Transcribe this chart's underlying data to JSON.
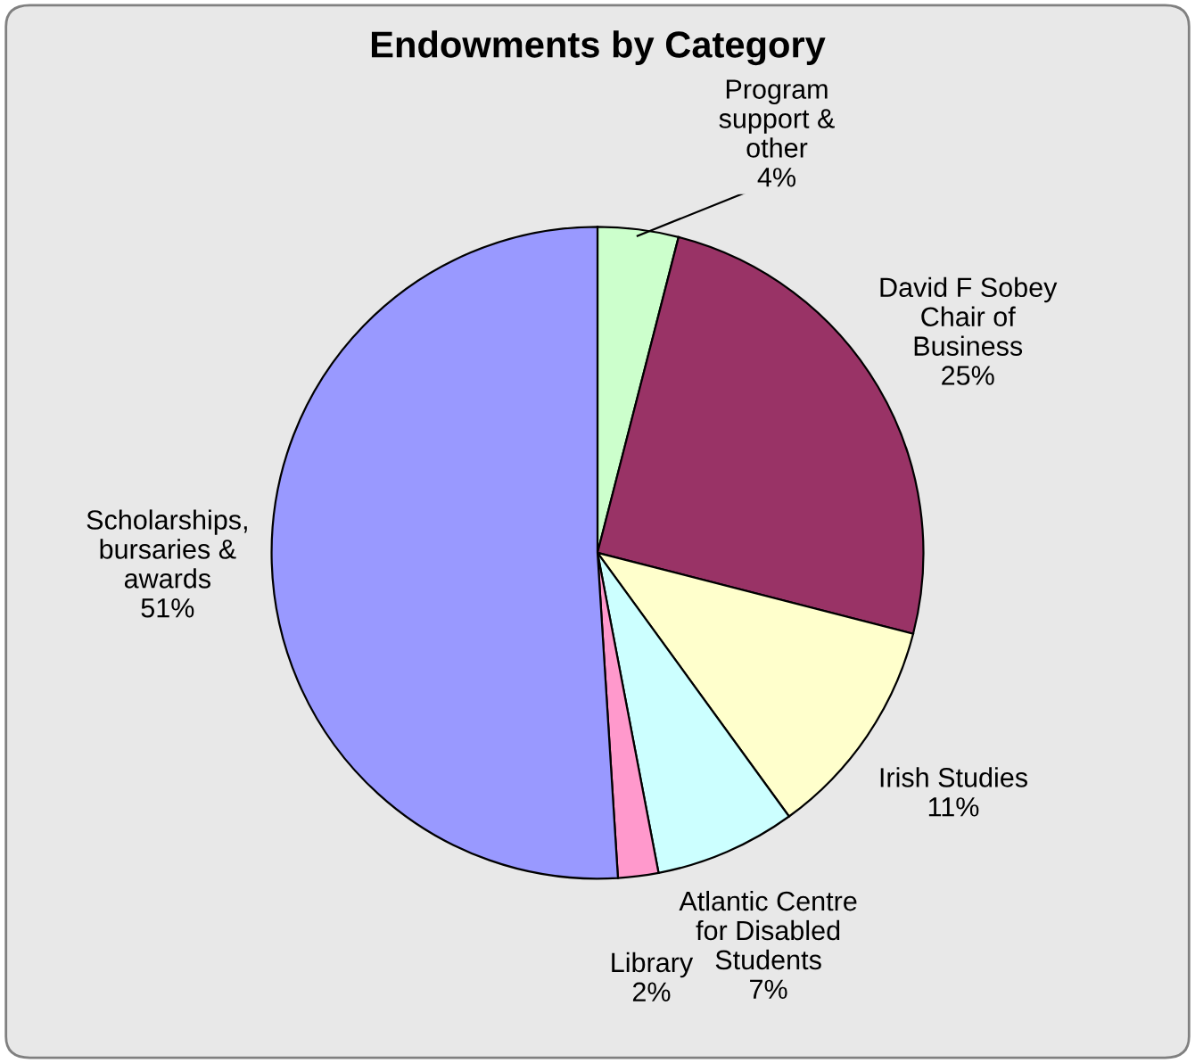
{
  "chart_data": {
    "type": "pie",
    "title": "Endowments by Category",
    "categories": [
      "Program\nsupport &\nother",
      "David F Sobey\nChair of\nBusiness",
      "Irish Studies",
      "Atlantic Centre\nfor Disabled\nStudents",
      "Library",
      "Scholarships,\nbursaries &\nawards"
    ],
    "values": [
      4,
      25,
      11,
      7,
      2,
      51
    ],
    "value_labels": [
      "4%",
      "25%",
      "11%",
      "7%",
      "2%",
      "51%"
    ],
    "colors": [
      "#ccffcc",
      "#993366",
      "#ffffcc",
      "#ccffff",
      "#ff99cc",
      "#9999ff"
    ]
  }
}
